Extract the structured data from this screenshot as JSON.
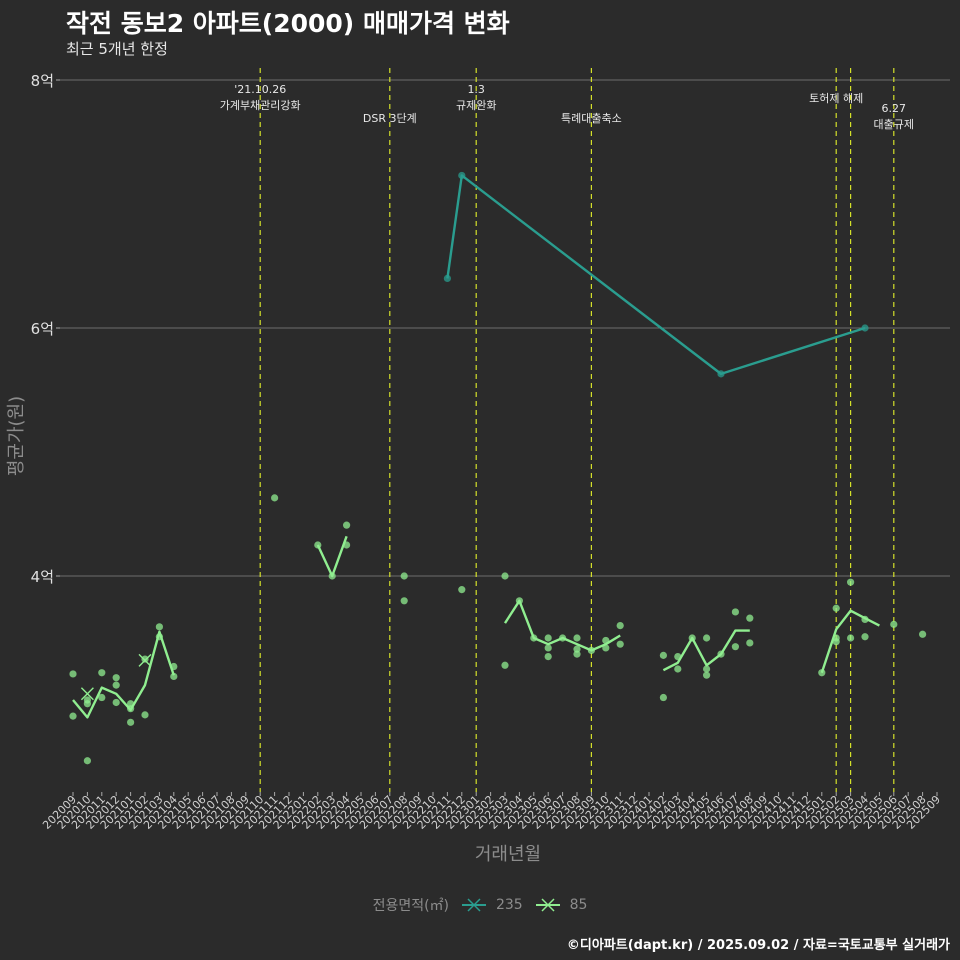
{
  "header": {
    "title": "작전 동보2 아파트(2000) 매매가격 변화",
    "subtitle": "최근 5개년 한정"
  },
  "caption": "©디아파트(dapt.kr) / 2025.09.02 / 자료=국토교통부 실거래가",
  "legend": {
    "title": "전용면적(㎡)",
    "items": [
      {
        "label": "235",
        "color": "#2a9d8f"
      },
      {
        "label": "85",
        "color": "#90ee90"
      }
    ]
  },
  "chart_data": {
    "type": "line",
    "xlabel": "거래년월",
    "ylabel": "평균가(원)",
    "ylim": [
      2.2,
      8.0
    ],
    "yticks": [
      {
        "value": 4,
        "label": "4억"
      },
      {
        "value": 6,
        "label": "6억"
      },
      {
        "value": 8,
        "label": "8억"
      }
    ],
    "categories": [
      "202009",
      "202010",
      "202011",
      "202012",
      "202101",
      "202102",
      "202103",
      "202104",
      "202105",
      "202106",
      "202107",
      "202108",
      "202109",
      "202110",
      "202111",
      "202112",
      "202201",
      "202202",
      "202203",
      "202204",
      "202205",
      "202206",
      "202207",
      "202208",
      "202209",
      "202210",
      "202211",
      "202212",
      "202301",
      "202302",
      "202303",
      "202304",
      "202305",
      "202306",
      "202307",
      "202308",
      "202309",
      "202310",
      "202311",
      "202312",
      "202401",
      "202402",
      "202403",
      "202404",
      "202405",
      "202406",
      "202407",
      "202408",
      "202409",
      "202410",
      "202411",
      "202412",
      "202501",
      "202502",
      "202503",
      "202504",
      "202505",
      "202506",
      "202507",
      "202508",
      "202509"
    ],
    "events": [
      {
        "x": 13,
        "label": "'21.10.26\n가계부채관리강화"
      },
      {
        "x": 22,
        "label": "DSR 3단계"
      },
      {
        "x": 28,
        "label": "1.3\n규제완화"
      },
      {
        "x": 36,
        "label": "특례대출축소"
      },
      {
        "x": 53,
        "label": "토허제 해제"
      },
      {
        "x": 54,
        "label": ""
      },
      {
        "x": 57,
        "label": "6.27\n대출규제"
      }
    ],
    "series": [
      {
        "name": "235",
        "color": "#2a9d8f",
        "line": [
          [
            26,
            6.4
          ],
          [
            27,
            7.23
          ],
          [
            45,
            5.63
          ],
          [
            55,
            6.0
          ]
        ],
        "points": [
          [
            26,
            6.4
          ],
          [
            27,
            7.23
          ],
          [
            45,
            5.63
          ],
          [
            55,
            6.0
          ]
        ]
      },
      {
        "name": "85",
        "color": "#90ee90",
        "line_segments": [
          [
            [
              0,
              3.0
            ],
            [
              1,
              2.86
            ],
            [
              2,
              3.1
            ],
            [
              3,
              3.05
            ],
            [
              4,
              2.92
            ],
            [
              5,
              3.12
            ],
            [
              6,
              3.55
            ],
            [
              7,
              3.2
            ]
          ],
          [
            [
              17,
              4.25
            ],
            [
              18,
              4.0
            ],
            [
              19,
              4.32
            ]
          ],
          [
            [
              30,
              3.62
            ],
            [
              31,
              3.8
            ],
            [
              32,
              3.5
            ],
            [
              33,
              3.45
            ],
            [
              34,
              3.5
            ],
            [
              35,
              3.45
            ],
            [
              36,
              3.4
            ],
            [
              37,
              3.45
            ],
            [
              38,
              3.52
            ]
          ],
          [
            [
              41,
              3.24
            ],
            [
              42,
              3.3
            ],
            [
              43,
              3.5
            ],
            [
              44,
              3.28
            ],
            [
              45,
              3.37
            ],
            [
              46,
              3.56
            ],
            [
              47,
              3.56
            ]
          ],
          [
            [
              52,
              3.22
            ],
            [
              53,
              3.57
            ],
            [
              54,
              3.72
            ],
            [
              55,
              3.66
            ],
            [
              56,
              3.6
            ]
          ]
        ],
        "points": [
          [
            0,
            3.21
          ],
          [
            0,
            2.87
          ],
          [
            1,
            3.0
          ],
          [
            1,
            2.97
          ],
          [
            1,
            2.51
          ],
          [
            2,
            3.22
          ],
          [
            2,
            3.02
          ],
          [
            3,
            3.18
          ],
          [
            3,
            3.12
          ],
          [
            3,
            2.98
          ],
          [
            4,
            2.97
          ],
          [
            4,
            2.93
          ],
          [
            4,
            2.82
          ],
          [
            5,
            3.33
          ],
          [
            5,
            2.88
          ],
          [
            6,
            3.59
          ],
          [
            6,
            3.51
          ],
          [
            7,
            3.27
          ],
          [
            7,
            3.19
          ],
          [
            14,
            4.63
          ],
          [
            17,
            4.25
          ],
          [
            18,
            4.0
          ],
          [
            19,
            4.41
          ],
          [
            19,
            4.25
          ],
          [
            23,
            4.0
          ],
          [
            23,
            3.8
          ],
          [
            27,
            3.89
          ],
          [
            30,
            4.0
          ],
          [
            30,
            3.28
          ],
          [
            31,
            3.8
          ],
          [
            32,
            3.5
          ],
          [
            33,
            3.5
          ],
          [
            33,
            3.42
          ],
          [
            33,
            3.35
          ],
          [
            34,
            3.5
          ],
          [
            35,
            3.5
          ],
          [
            35,
            3.41
          ],
          [
            35,
            3.37
          ],
          [
            36,
            3.4
          ],
          [
            37,
            3.48
          ],
          [
            37,
            3.42
          ],
          [
            38,
            3.6
          ],
          [
            38,
            3.45
          ],
          [
            41,
            3.36
          ],
          [
            41,
            3.02
          ],
          [
            42,
            3.35
          ],
          [
            42,
            3.25
          ],
          [
            43,
            3.5
          ],
          [
            44,
            3.5
          ],
          [
            44,
            3.25
          ],
          [
            44,
            3.2
          ],
          [
            45,
            3.37
          ],
          [
            46,
            3.71
          ],
          [
            46,
            3.43
          ],
          [
            47,
            3.66
          ],
          [
            47,
            3.46
          ],
          [
            52,
            3.22
          ],
          [
            53,
            3.74
          ],
          [
            53,
            3.5
          ],
          [
            53,
            3.47
          ],
          [
            54,
            3.95
          ],
          [
            54,
            3.5
          ],
          [
            55,
            3.65
          ],
          [
            55,
            3.51
          ],
          [
            57,
            3.61
          ],
          [
            59,
            3.53
          ]
        ]
      }
    ]
  }
}
